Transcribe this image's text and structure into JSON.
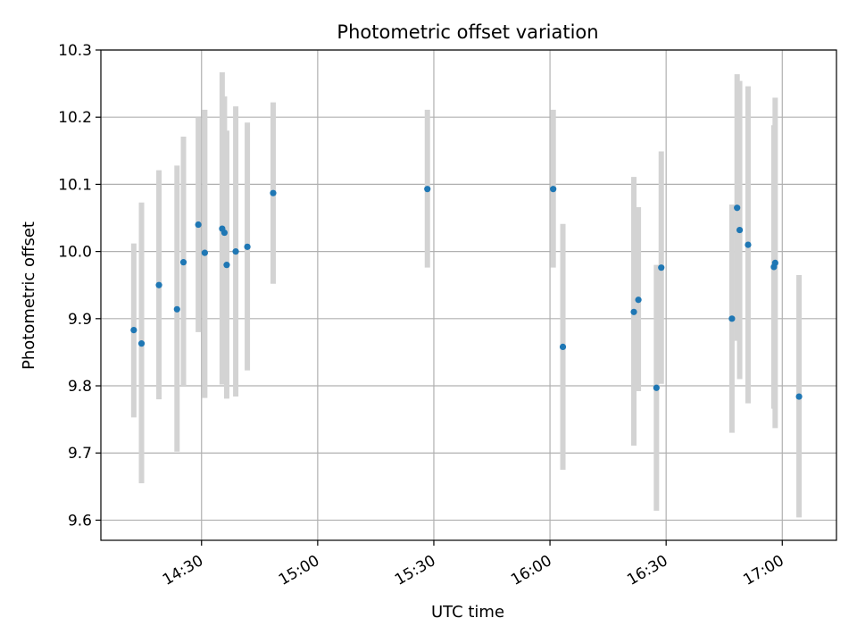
{
  "chart_data": {
    "type": "scatter",
    "title": "Photometric offset variation",
    "xlabel": "UTC time",
    "ylabel": "Photometric offset",
    "xlim": [
      "14:04",
      "17:14"
    ],
    "ylim": [
      9.57,
      10.3
    ],
    "x_ticks": [
      "14:30",
      "15:00",
      "15:30",
      "16:00",
      "16:30",
      "17:00"
    ],
    "y_ticks": [
      "9.6",
      "9.7",
      "9.8",
      "9.9",
      "10.0",
      "10.1",
      "10.2",
      "10.3"
    ],
    "grid": true,
    "marker_color": "#1f77b4",
    "errorbar_color": "#d3d3d3",
    "points": [
      {
        "x": "14:12:30",
        "y": 9.883,
        "lo": 9.753,
        "hi": 10.012
      },
      {
        "x": "14:14:30",
        "y": 9.863,
        "lo": 9.655,
        "hi": 10.073
      },
      {
        "x": "14:19:00",
        "y": 9.95,
        "lo": 9.78,
        "hi": 10.121
      },
      {
        "x": "14:23:40",
        "y": 9.914,
        "lo": 9.702,
        "hi": 10.128
      },
      {
        "x": "14:25:20",
        "y": 9.984,
        "lo": 9.8,
        "hi": 10.171
      },
      {
        "x": "14:29:10",
        "y": 10.04,
        "lo": 9.88,
        "hi": 10.2
      },
      {
        "x": "14:30:50",
        "y": 9.998,
        "lo": 9.782,
        "hi": 10.211
      },
      {
        "x": "14:35:20",
        "y": 10.034,
        "lo": 9.802,
        "hi": 10.267
      },
      {
        "x": "14:35:55",
        "y": 10.028,
        "lo": 9.825,
        "hi": 10.231
      },
      {
        "x": "14:36:30",
        "y": 9.98,
        "lo": 9.781,
        "hi": 10.18
      },
      {
        "x": "14:38:50",
        "y": 10.0,
        "lo": 9.784,
        "hi": 10.216
      },
      {
        "x": "14:41:50",
        "y": 10.007,
        "lo": 9.823,
        "hi": 10.192
      },
      {
        "x": "14:48:30",
        "y": 10.087,
        "lo": 9.952,
        "hi": 10.222
      },
      {
        "x": "15:28:20",
        "y": 10.093,
        "lo": 9.976,
        "hi": 10.211
      },
      {
        "x": "16:00:50",
        "y": 10.093,
        "lo": 9.976,
        "hi": 10.211
      },
      {
        "x": "16:03:20",
        "y": 9.858,
        "lo": 9.675,
        "hi": 10.041
      },
      {
        "x": "16:21:40",
        "y": 9.91,
        "lo": 9.711,
        "hi": 10.111
      },
      {
        "x": "16:22:50",
        "y": 9.928,
        "lo": 9.792,
        "hi": 10.066
      },
      {
        "x": "16:27:30",
        "y": 9.797,
        "lo": 9.614,
        "hi": 9.98
      },
      {
        "x": "16:28:45",
        "y": 9.976,
        "lo": 9.803,
        "hi": 10.149
      },
      {
        "x": "16:47:00",
        "y": 9.9,
        "lo": 9.73,
        "hi": 10.07
      },
      {
        "x": "16:48:20",
        "y": 10.065,
        "lo": 9.867,
        "hi": 10.264
      },
      {
        "x": "16:49:00",
        "y": 10.032,
        "lo": 9.81,
        "hi": 10.254
      },
      {
        "x": "16:51:10",
        "y": 10.01,
        "lo": 9.774,
        "hi": 10.246
      },
      {
        "x": "16:57:50",
        "y": 9.977,
        "lo": 9.766,
        "hi": 10.188
      },
      {
        "x": "16:58:10",
        "y": 9.983,
        "lo": 9.737,
        "hi": 10.229
      },
      {
        "x": "17:04:20",
        "y": 9.784,
        "lo": 9.604,
        "hi": 9.965
      }
    ]
  }
}
